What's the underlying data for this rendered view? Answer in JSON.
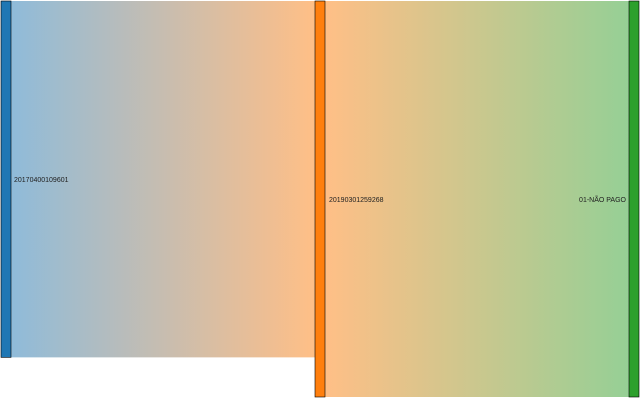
{
  "chart_data": {
    "type": "sankey",
    "nodes": [
      {
        "label": "20170400109601",
        "color": "#1f77b4"
      },
      {
        "label": "20190301259268",
        "color": "#ff7f0e"
      },
      {
        "label": "01-NÃO PAGO",
        "color": "#2ca02c"
      }
    ],
    "links": [
      {
        "source": 0,
        "target": 1,
        "value": 0.9
      },
      {
        "source": 1,
        "target": 2,
        "value": 1.0
      }
    ]
  }
}
